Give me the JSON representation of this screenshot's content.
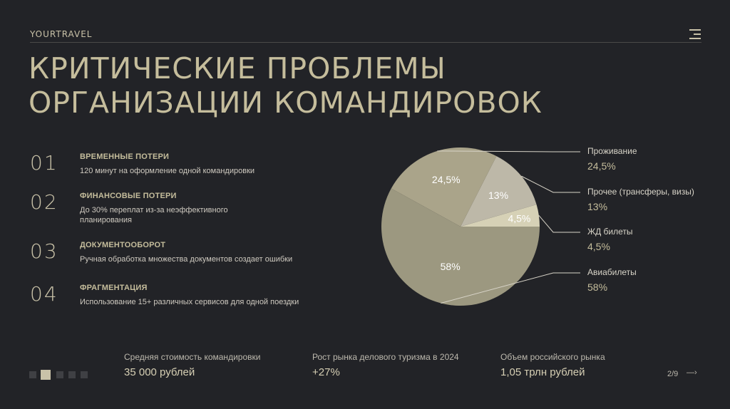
{
  "header": {
    "brand": "YOURTRAVEL",
    "menu_icon": "hamburger-menu-icon"
  },
  "title": {
    "line1": "Критические проблемы",
    "line2": "организации командировок"
  },
  "problems": [
    {
      "num": "01",
      "title": "ВРЕМЕННЫЕ ПОТЕРИ",
      "desc": "120 минут на оформление одной командировки"
    },
    {
      "num": "02",
      "title": "ФИНАНСОВЫЕ ПОТЕРИ",
      "desc": "До 30% переплат из-за неэффективного планирования"
    },
    {
      "num": "03",
      "title": "ДОКУМЕНТООБОРОТ",
      "desc": "Ручная обработка множества документов создает ошибки"
    },
    {
      "num": "04",
      "title": "ФРАГМЕНТАЦИЯ",
      "desc": "Использование 15+ различных сервисов для одной поездки"
    }
  ],
  "chart_data": {
    "type": "pie",
    "slices": [
      {
        "name": "Проживание",
        "value": 24.5,
        "label": "24,5%",
        "color": "#aaa48a"
      },
      {
        "name": "Прочее (трансферы, визы)",
        "value": 13,
        "label": "13%",
        "color": "#bdb8a8"
      },
      {
        "name": "ЖД билеты",
        "value": 4.5,
        "label": "4,5%",
        "color": "#d6d1b6"
      },
      {
        "name": "Авиабилеты",
        "value": 58,
        "label": "58%",
        "color": "#9c9880"
      }
    ],
    "start": "3 o'clock, counter-clockwise order: ЖД билеты, Прочее, Проживание; Авиабилеты clockwise from 3 o'clock",
    "legend_position": "right"
  },
  "stats": [
    {
      "label": "Средняя стоимость командировки",
      "value": "35 000 рублей"
    },
    {
      "label": "Рост рынка делового туризма в 2024",
      "value": "+27%"
    },
    {
      "label": "Объем российского рынка",
      "value": "1,05 трлн рублей"
    }
  ],
  "pagination": {
    "current": "2/9",
    "total_dots": 5,
    "active_dot": 1,
    "next_icon": "arrow-right-icon"
  },
  "colors": {
    "background": "#222327",
    "accent": "#c5bd9c"
  }
}
